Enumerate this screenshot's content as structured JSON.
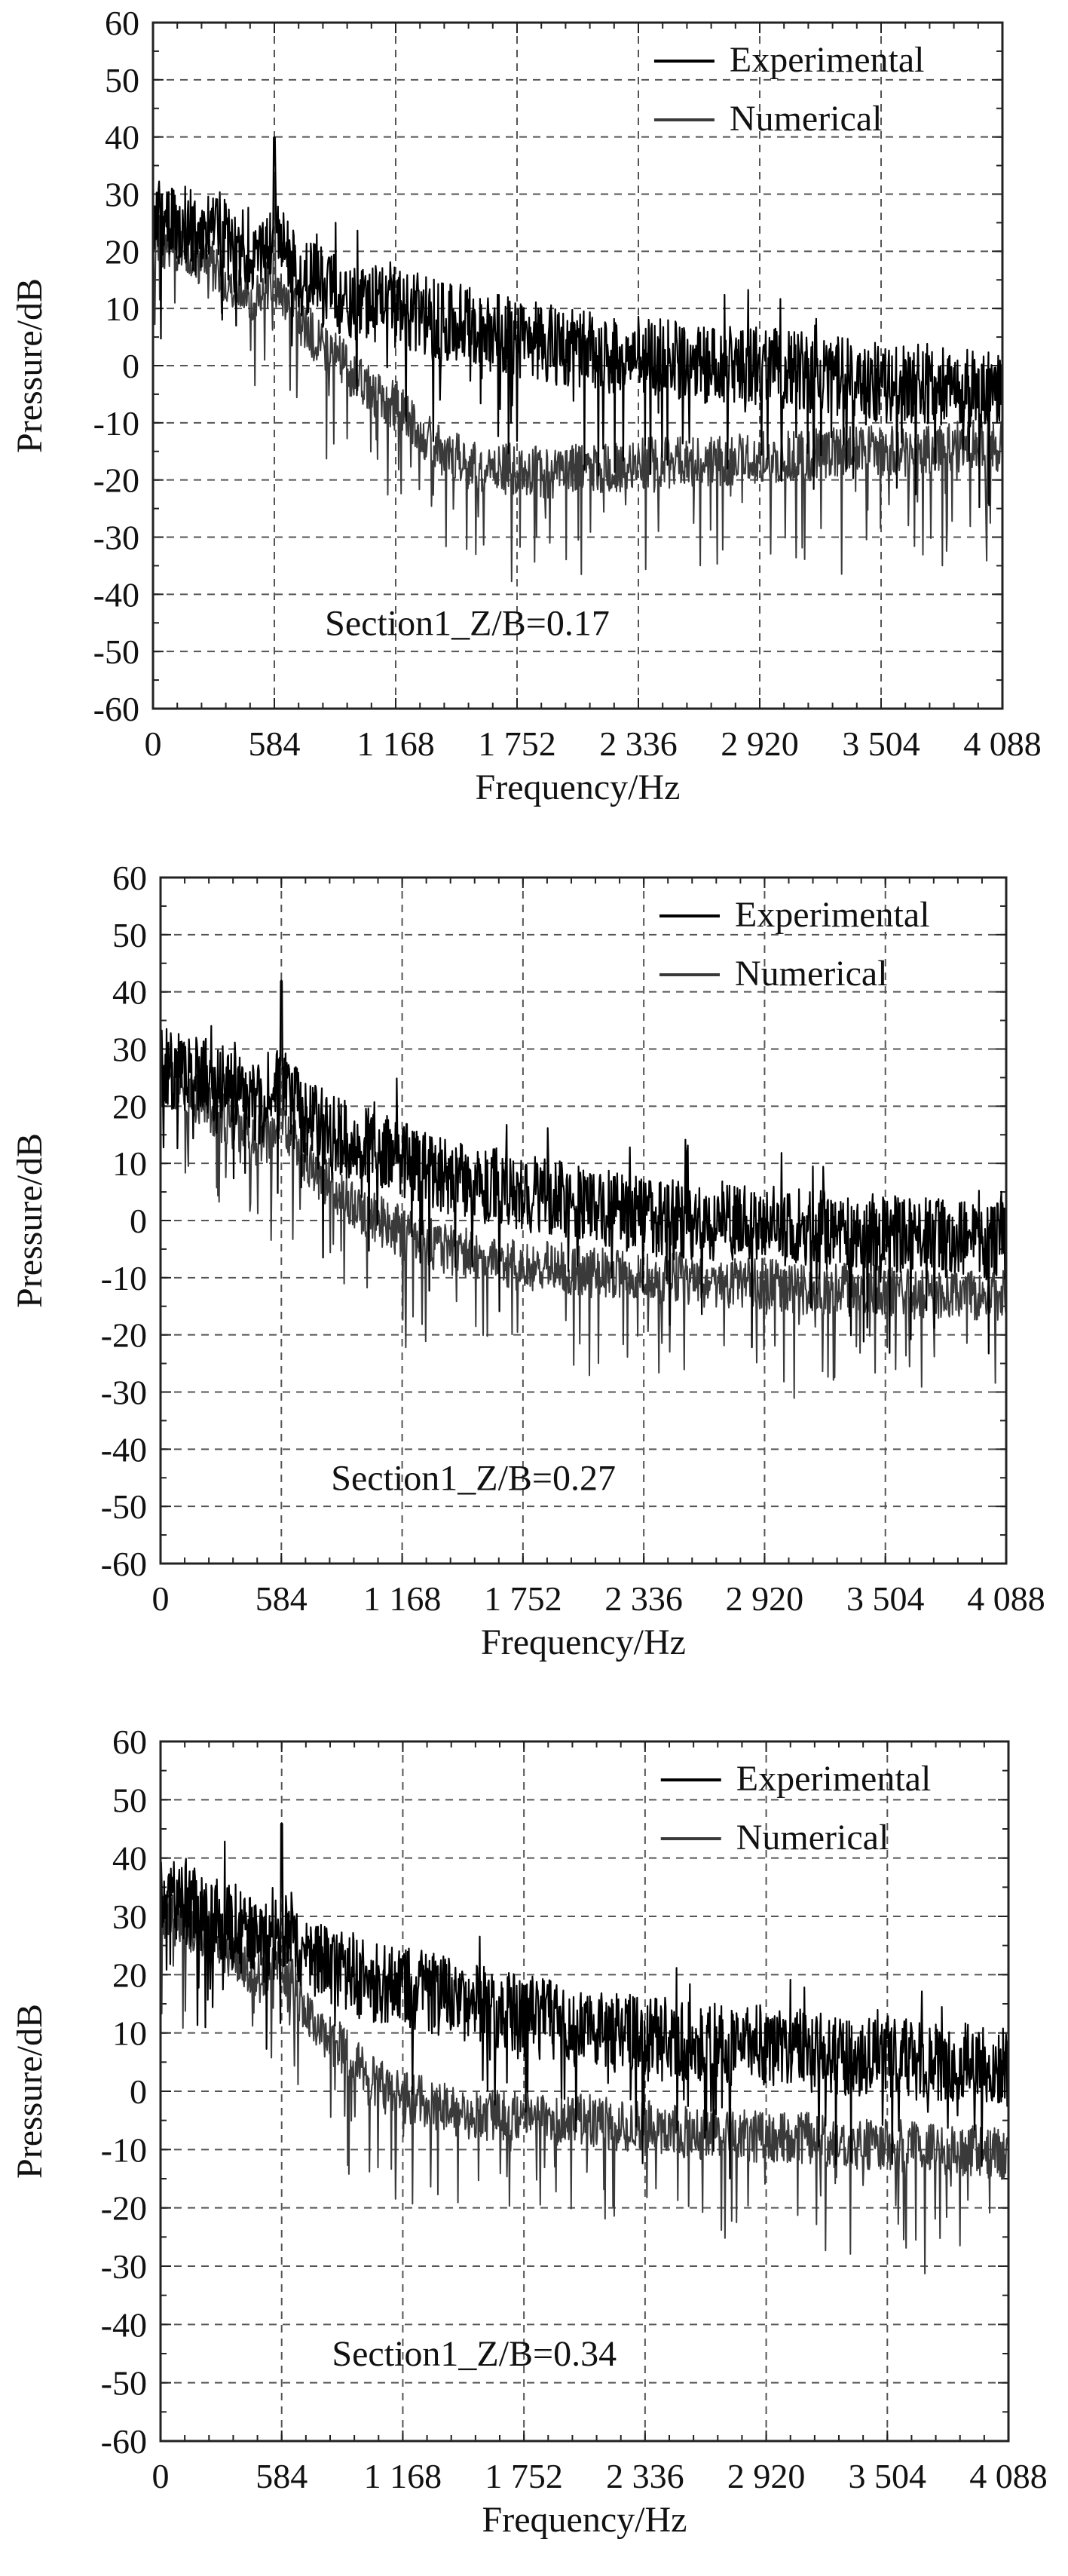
{
  "chart_data": [
    {
      "type": "line",
      "xlabel": "Frequency/Hz",
      "ylabel": "Pressure/dB",
      "annotation": "Section1_Z/B=0.17",
      "xlim": [
        0,
        4088
      ],
      "ylim": [
        -60,
        60
      ],
      "x_ticks": [
        0,
        584,
        1168,
        1752,
        2336,
        2920,
        3504,
        4088
      ],
      "x_tick_labels": [
        "0",
        "584",
        "1 168",
        "1 752",
        "2 336",
        "2 920",
        "3 504",
        "4 088"
      ],
      "y_ticks": [
        60,
        50,
        40,
        30,
        20,
        10,
        0,
        -10,
        -20,
        -30,
        -40,
        -50,
        -60
      ],
      "grid": true,
      "legend_position": "top-right",
      "series": [
        {
          "name": "Experimental",
          "color": "#000000",
          "x": [
            0,
            100,
            200,
            300,
            400,
            500,
            584,
            700,
            800,
            900,
            1000,
            1168,
            1300,
            1400,
            1500,
            1600,
            1752,
            1900,
            2000,
            2100,
            2200,
            2336,
            2500,
            2700,
            2920,
            3100,
            3300,
            3504,
            3700,
            3900,
            4088
          ],
          "values": [
            26,
            25,
            24,
            23,
            21,
            19,
            22,
            16,
            14,
            12,
            11,
            10,
            9,
            8,
            7,
            6,
            5,
            4,
            3,
            3,
            2,
            2,
            1,
            0,
            0,
            -1,
            -2,
            -3,
            -3,
            -4,
            -4
          ]
        },
        {
          "name": "Numerical",
          "color": "#3a3a3a",
          "x": [
            0,
            100,
            200,
            300,
            400,
            500,
            584,
            700,
            800,
            900,
            1000,
            1168,
            1300,
            1400,
            1500,
            1600,
            1752,
            1900,
            2000,
            2100,
            2200,
            2336,
            2500,
            2700,
            2920,
            3100,
            3300,
            3504,
            3700,
            3900,
            4088
          ],
          "values": [
            22,
            21,
            19,
            17,
            14,
            12,
            15,
            8,
            4,
            1,
            -3,
            -7,
            -12,
            -15,
            -17,
            -18,
            -18,
            -19,
            -18,
            -18,
            -18,
            -17,
            -17,
            -17,
            -16,
            -16,
            -15,
            -15,
            -15,
            -14,
            -14
          ]
        }
      ]
    },
    {
      "type": "line",
      "xlabel": "Frequency/Hz",
      "ylabel": "Pressure/dB",
      "annotation": "Section1_Z/B=0.27",
      "xlim": [
        0,
        4088
      ],
      "ylim": [
        -60,
        60
      ],
      "x_ticks": [
        0,
        584,
        1168,
        1752,
        2336,
        2920,
        3504,
        4088
      ],
      "x_tick_labels": [
        "0",
        "584",
        "1 168",
        "1 752",
        "2 336",
        "2 920",
        "3 504",
        "4 088"
      ],
      "y_ticks": [
        60,
        50,
        40,
        30,
        20,
        10,
        0,
        -10,
        -20,
        -30,
        -40,
        -50,
        -60
      ],
      "grid": true,
      "legend_position": "top-right",
      "series": [
        {
          "name": "Experimental",
          "color": "#000000",
          "x": [
            0,
            100,
            200,
            300,
            400,
            500,
            584,
            700,
            800,
            900,
            1000,
            1168,
            1300,
            1400,
            1500,
            1600,
            1752,
            1900,
            2000,
            2100,
            2200,
            2336,
            2500,
            2700,
            2920,
            3100,
            3300,
            3504,
            3700,
            3900,
            4088
          ],
          "values": [
            27,
            26,
            25,
            24,
            22,
            20,
            24,
            18,
            16,
            14,
            13,
            11,
            9,
            8,
            7,
            6,
            5,
            4,
            3,
            3,
            2,
            1,
            0,
            0,
            -1,
            -1,
            -2,
            -2,
            -3,
            -3,
            -4
          ]
        },
        {
          "name": "Numerical",
          "color": "#3a3a3a",
          "x": [
            0,
            100,
            200,
            300,
            400,
            500,
            584,
            700,
            800,
            900,
            1000,
            1168,
            1300,
            1400,
            1500,
            1600,
            1752,
            1900,
            2000,
            2100,
            2200,
            2336,
            2500,
            2700,
            2920,
            3100,
            3300,
            3504,
            3700,
            3900,
            4088
          ],
          "values": [
            24,
            23,
            21,
            18,
            16,
            14,
            17,
            10,
            7,
            4,
            1,
            -2,
            -4,
            -5,
            -6,
            -7,
            -8,
            -8,
            -9,
            -9,
            -9,
            -10,
            -10,
            -11,
            -11,
            -12,
            -12,
            -12,
            -13,
            -13,
            -13
          ]
        }
      ]
    },
    {
      "type": "line",
      "xlabel": "Frequency/Hz",
      "ylabel": "Pressure/dB",
      "annotation": "Section1_Z/B=0.34",
      "xlim": [
        0,
        4088
      ],
      "ylim": [
        -60,
        60
      ],
      "x_ticks": [
        0,
        584,
        1168,
        1752,
        2336,
        2920,
        3504,
        4088
      ],
      "x_tick_labels": [
        "0",
        "584",
        "1 168",
        "1 752",
        "2 336",
        "2 920",
        "3 504",
        "4 088"
      ],
      "y_ticks": [
        60,
        50,
        40,
        30,
        20,
        10,
        0,
        -10,
        -20,
        -30,
        -40,
        -50,
        -60
      ],
      "grid": true,
      "legend_position": "top-right",
      "series": [
        {
          "name": "Experimental",
          "color": "#000000",
          "x": [
            0,
            100,
            200,
            300,
            400,
            500,
            584,
            700,
            800,
            900,
            1000,
            1168,
            1300,
            1400,
            1500,
            1600,
            1752,
            1900,
            2000,
            2100,
            2200,
            2336,
            2500,
            2700,
            2920,
            3100,
            3300,
            3504,
            3700,
            3900,
            4088
          ],
          "values": [
            33,
            32,
            31,
            29,
            27,
            25,
            28,
            23,
            22,
            20,
            19,
            18,
            17,
            16,
            15,
            14,
            13,
            12,
            11,
            11,
            10,
            10,
            9,
            8,
            8,
            7,
            6,
            6,
            5,
            5,
            4
          ]
        },
        {
          "name": "Numerical",
          "color": "#3a3a3a",
          "x": [
            0,
            100,
            200,
            300,
            400,
            500,
            584,
            700,
            800,
            900,
            1000,
            1168,
            1300,
            1400,
            1500,
            1600,
            1752,
            1900,
            2000,
            2100,
            2200,
            2336,
            2500,
            2700,
            2920,
            3100,
            3300,
            3504,
            3700,
            3900,
            4088
          ],
          "values": [
            30,
            29,
            27,
            25,
            22,
            19,
            22,
            14,
            10,
            6,
            2,
            -1,
            -2,
            -3,
            -4,
            -4,
            -4,
            -5,
            -5,
            -5,
            -6,
            -6,
            -7,
            -7,
            -8,
            -8,
            -9,
            -9,
            -10,
            -10,
            -11
          ]
        }
      ]
    }
  ]
}
